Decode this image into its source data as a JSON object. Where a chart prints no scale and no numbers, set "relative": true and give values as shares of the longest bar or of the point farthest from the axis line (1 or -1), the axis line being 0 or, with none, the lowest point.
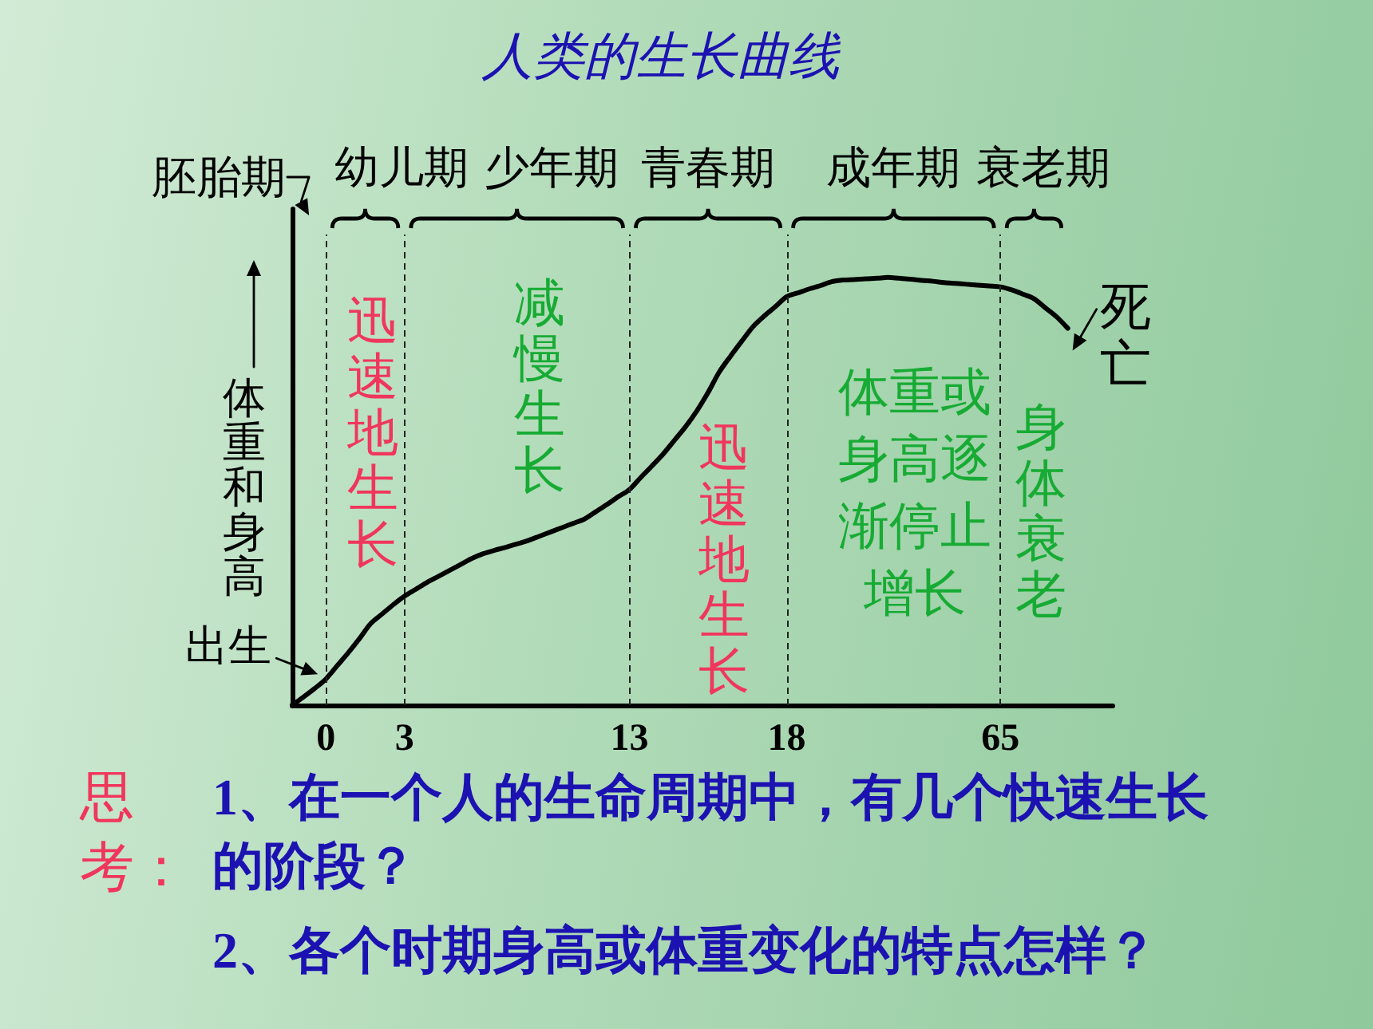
{
  "chart_data": {
    "type": "line",
    "title": "人类的生长曲线",
    "ylabel": "体重和身高",
    "relative": true,
    "categories": [
      null,
      null,
      null,
      "0",
      null,
      null,
      null,
      null,
      null,
      null,
      "3",
      null,
      null,
      null,
      null,
      null,
      null,
      null,
      null,
      null,
      null,
      null,
      null,
      null,
      null,
      null,
      null,
      null,
      null,
      null,
      "13",
      null,
      null,
      null,
      null,
      null,
      null,
      null,
      null,
      null,
      null,
      null,
      null,
      null,
      "18",
      null,
      null,
      null,
      null,
      null,
      null,
      null,
      null,
      null,
      null,
      null,
      null,
      null,
      null,
      null,
      null,
      null,
      null,
      "65",
      null,
      null,
      null,
      null,
      null,
      null,
      null,
      null,
      null,
      null
    ],
    "series": [
      {
        "color": "#000000",
        "values": [
          0,
          0.019,
          0.039,
          0.061,
          0.092,
          0.123,
          0.156,
          0.191,
          0.213,
          0.235,
          0.255,
          0.271,
          0.287,
          0.301,
          0.315,
          0.329,
          0.343,
          0.354,
          0.362,
          0.369,
          0.377,
          0.385,
          0.395,
          0.405,
          0.415,
          0.425,
          0.435,
          0.452,
          0.469,
          0.487,
          0.504,
          0.532,
          0.559,
          0.587,
          0.619,
          0.651,
          0.688,
          0.731,
          0.779,
          0.816,
          0.851,
          0.885,
          0.91,
          0.932,
          0.955,
          0.964,
          0.973,
          0.981,
          0.99,
          0.994,
          0.995,
          0.997,
          0.998,
          1,
          0.998,
          0.996,
          0.993,
          0.991,
          0.988,
          0.986,
          0.984,
          0.982,
          0.98,
          0.978,
          0.971,
          0.961,
          0.95,
          0.929,
          0.908,
          0.881,
          null,
          null,
          null,
          null
        ]
      }
    ],
    "ref_lines": [
      {
        "axis": "x",
        "value": "0",
        "line_style": "dashed"
      },
      {
        "axis": "x",
        "value": "3",
        "line_style": "dashed"
      },
      {
        "axis": "x",
        "value": "13",
        "line_style": "dashed"
      },
      {
        "axis": "x",
        "value": "18",
        "line_style": "dashed"
      },
      {
        "axis": "x",
        "value": "65",
        "line_style": "dashed"
      }
    ],
    "annotations": [
      "胚胎期",
      "幼儿期",
      "少年期",
      "青春期",
      "成年期",
      "衰老期",
      {
        "text": "出生",
        "x": "0",
        "y": 0.061
      },
      "迅速地生长",
      "减慢生长",
      "迅速地生长",
      "体重或身高逐渐停止增长",
      "身体衰老",
      "死亡",
      "思考：",
      "1、在一个人的生命周期中，有几个快速生长的阶段？",
      "2、各个时期身高或体重变化的特点怎样？"
    ]
  }
}
